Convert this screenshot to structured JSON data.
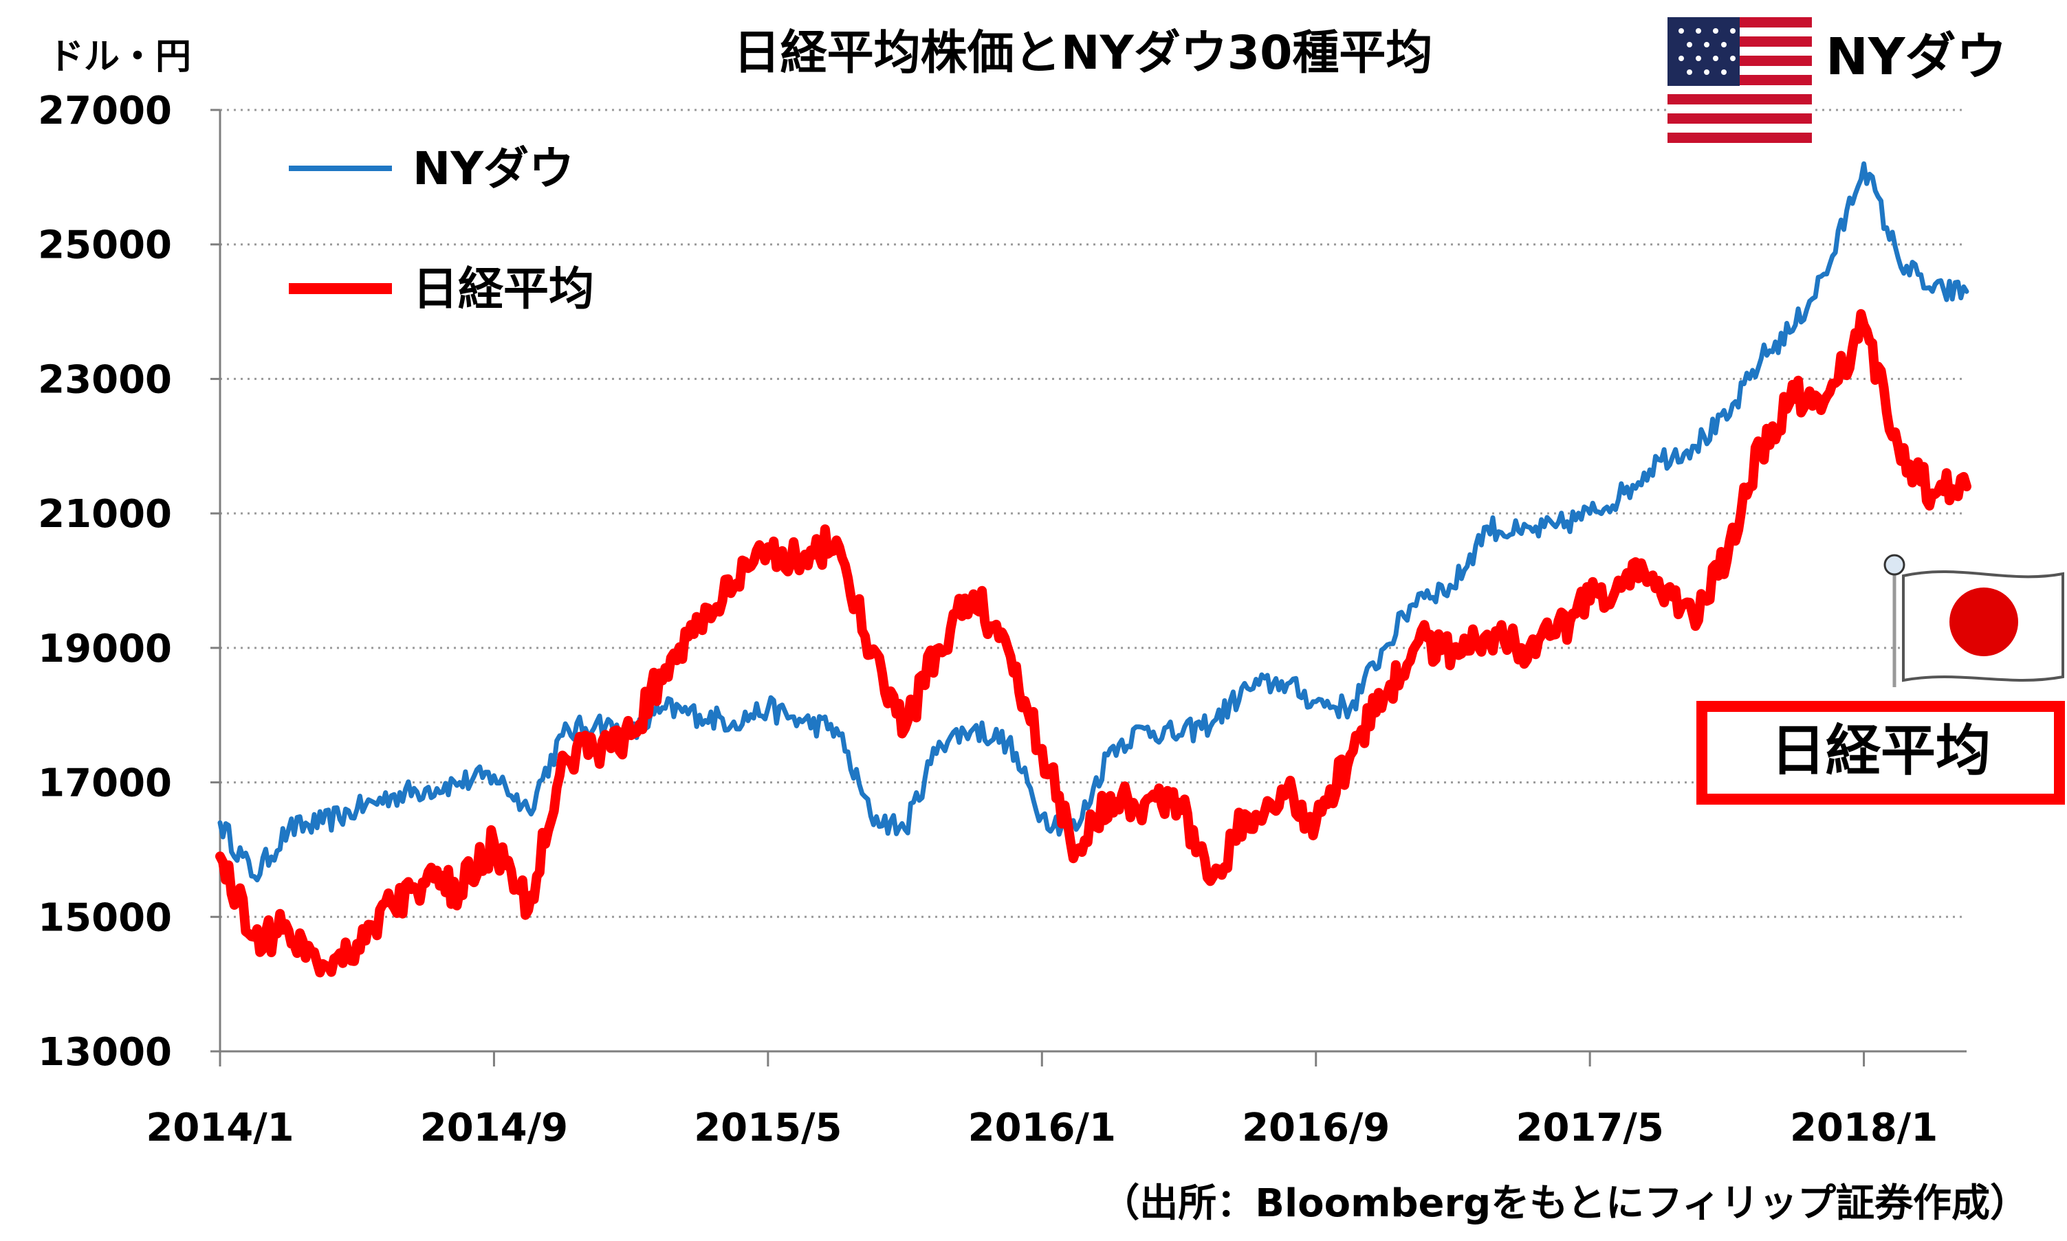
{
  "chart_data": {
    "type": "line",
    "title": "日経平均株価とNYダウ30種平均",
    "ylabel": "ドル・円",
    "source_note": "（出所：Bloombergをもとにフィリップ証券作成）",
    "ylim": [
      13000,
      27000
    ],
    "yticks": [
      13000,
      15000,
      17000,
      19000,
      21000,
      23000,
      25000,
      27000
    ],
    "xlim": [
      "2014/1",
      "2018/4"
    ],
    "xticks": [
      "2014/1",
      "2014/9",
      "2015/5",
      "2016/1",
      "2016/9",
      "2017/5",
      "2018/1"
    ],
    "grid": "horizontal-dotted",
    "legend_position": "top-left",
    "legend": [
      {
        "label": "NYダウ",
        "color": "#1F77C4"
      },
      {
        "label": "日経平均",
        "color": "#FF0000"
      }
    ],
    "callouts": {
      "us_label": "NYダウ",
      "jp_label": "日経平均"
    },
    "series": [
      {
        "name": "NYダウ",
        "color": "#1F77C4",
        "x": [
          "2014/1",
          "2014/2",
          "2014/3",
          "2014/4",
          "2014/5",
          "2014/6",
          "2014/7",
          "2014/8",
          "2014/9",
          "2014/10",
          "2014/11",
          "2014/12",
          "2015/1",
          "2015/2",
          "2015/3",
          "2015/4",
          "2015/5",
          "2015/6",
          "2015/7",
          "2015/8",
          "2015/9",
          "2015/10",
          "2015/11",
          "2015/12",
          "2016/1",
          "2016/2",
          "2016/3",
          "2016/4",
          "2016/5",
          "2016/6",
          "2016/7",
          "2016/8",
          "2016/9",
          "2016/10",
          "2016/11",
          "2016/12",
          "2017/1",
          "2017/2",
          "2017/3",
          "2017/4",
          "2017/5",
          "2017/6",
          "2017/7",
          "2017/8",
          "2017/9",
          "2017/10",
          "2017/11",
          "2017/12",
          "2018/1",
          "2018/2",
          "2018/3",
          "2018/4"
        ],
        "values": [
          16400,
          15600,
          16300,
          16400,
          16600,
          16800,
          16900,
          17000,
          17100,
          16600,
          17700,
          17900,
          17700,
          18100,
          18000,
          17900,
          18100,
          17900,
          17800,
          16500,
          16300,
          17600,
          17800,
          17600,
          16500,
          16300,
          17500,
          17800,
          17700,
          17900,
          18400,
          18500,
          18200,
          18100,
          19000,
          19800,
          19900,
          20800,
          20700,
          20800,
          21000,
          21300,
          21800,
          22000,
          22400,
          23300,
          23800,
          24700,
          26200,
          24800,
          24300,
          24300
        ]
      },
      {
        "name": "日経平均",
        "color": "#FF0000",
        "x": [
          "2014/1",
          "2014/2",
          "2014/3",
          "2014/4",
          "2014/5",
          "2014/6",
          "2014/7",
          "2014/8",
          "2014/9",
          "2014/10",
          "2014/11",
          "2014/12",
          "2015/1",
          "2015/2",
          "2015/3",
          "2015/4",
          "2015/5",
          "2015/6",
          "2015/7",
          "2015/8",
          "2015/9",
          "2015/10",
          "2015/11",
          "2015/12",
          "2016/1",
          "2016/2",
          "2016/3",
          "2016/4",
          "2016/5",
          "2016/6",
          "2016/7",
          "2016/8",
          "2016/9",
          "2016/10",
          "2016/11",
          "2016/12",
          "2017/1",
          "2017/2",
          "2017/3",
          "2017/4",
          "2017/5",
          "2017/6",
          "2017/7",
          "2017/8",
          "2017/9",
          "2017/10",
          "2017/11",
          "2017/12",
          "2018/1",
          "2018/2",
          "2018/3",
          "2018/4"
        ],
        "values": [
          15900,
          14700,
          14800,
          14300,
          14600,
          15200,
          15500,
          15400,
          16100,
          15100,
          17400,
          17500,
          17700,
          18700,
          19400,
          19900,
          20500,
          20300,
          20600,
          18900,
          17800,
          19000,
          19800,
          19000,
          17500,
          16000,
          16800,
          16700,
          16700,
          15600,
          16500,
          16900,
          16400,
          17400,
          18300,
          19100,
          19000,
          19200,
          19000,
          19200,
          19700,
          20000,
          20000,
          19500,
          20300,
          22000,
          22700,
          22800,
          23800,
          22000,
          21300,
          21400
        ]
      }
    ]
  }
}
